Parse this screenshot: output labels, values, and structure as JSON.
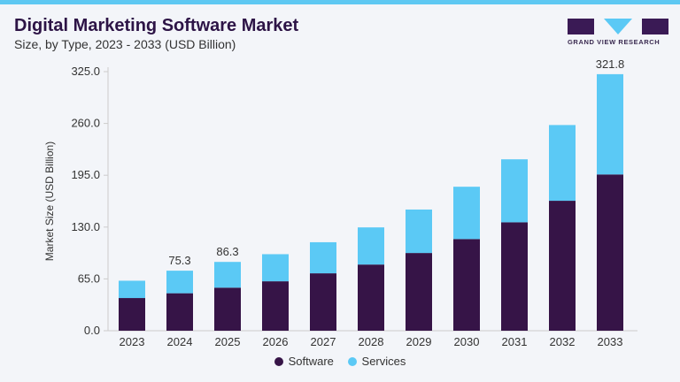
{
  "title": "Digital Marketing Software Market",
  "subtitle": "Size, by Type, 2023 - 2033 (USD Billion)",
  "logo_text": "GRAND VIEW RESEARCH",
  "colors": {
    "software": "#361447",
    "services": "#5bc9f5",
    "accent": "#5ec8f2"
  },
  "chart_data": {
    "type": "bar",
    "stacked": true,
    "categories": [
      "2023",
      "2024",
      "2025",
      "2026",
      "2027",
      "2028",
      "2029",
      "2030",
      "2031",
      "2032",
      "2033"
    ],
    "series": [
      {
        "name": "Software",
        "values": [
          41,
          47,
          54,
          62,
          72,
          83,
          97.5,
          115,
          136,
          163,
          196
        ]
      },
      {
        "name": "Services",
        "values": [
          21.7,
          28.3,
          32.3,
          34,
          39,
          46.6,
          54.5,
          65.6,
          79,
          95,
          125.8
        ]
      }
    ],
    "data_labels": {
      "2024": "75.3",
      "2025": "86.3",
      "2033": "321.8"
    },
    "ylabel": "Market Size (USD Billion)",
    "xlabel": "",
    "ylim": [
      0,
      325
    ],
    "yticks": [
      "0.0",
      "65.0",
      "130.0",
      "195.0",
      "260.0",
      "325.0"
    ],
    "grid": false,
    "legend": "bottom"
  }
}
